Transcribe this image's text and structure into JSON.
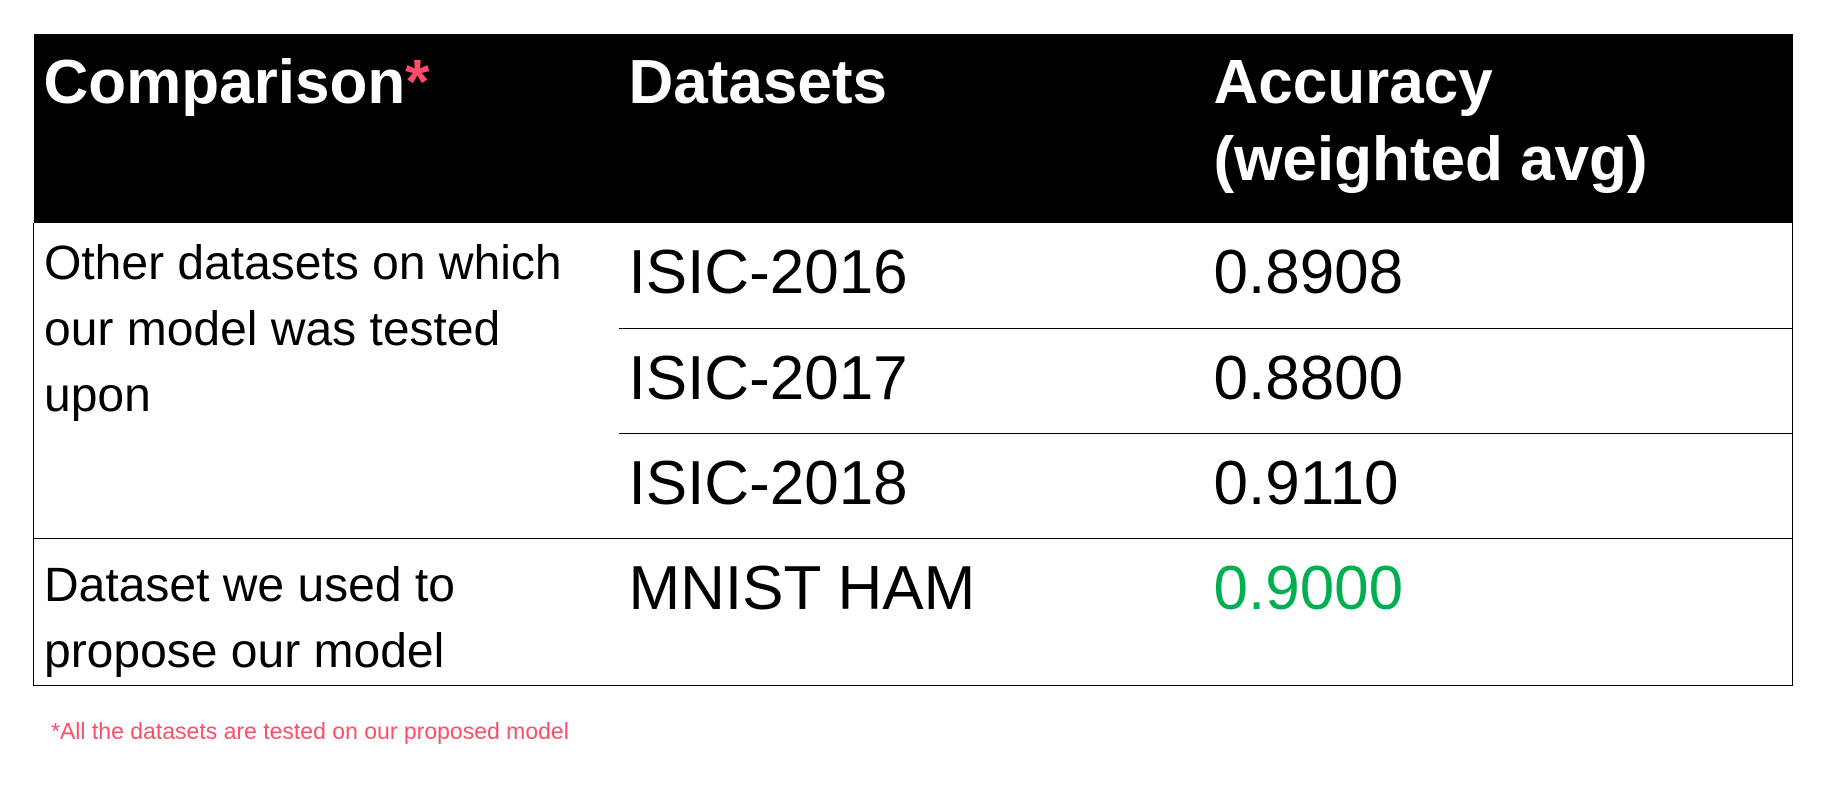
{
  "table": {
    "headers": {
      "comparison": "Comparison",
      "asterisk": "*",
      "datasets": "Datasets",
      "accuracy_line1": "Accuracy",
      "accuracy_line2": "(weighted avg)"
    },
    "group_other": {
      "description": "Other datasets on which our model was tested upon",
      "rows": [
        {
          "dataset": "ISIC-2016",
          "accuracy": "0.8908"
        },
        {
          "dataset": "ISIC-2017",
          "accuracy": "0.8800"
        },
        {
          "dataset": "ISIC-2018",
          "accuracy": "0.9110"
        }
      ]
    },
    "group_proposed": {
      "description": "Dataset we used to propose our model",
      "dataset": "MNIST HAM",
      "accuracy": "0.9000"
    }
  },
  "footnote": "*All the datasets are tested on our proposed model",
  "colors": {
    "header_bg": "#000000",
    "header_text": "#ffffff",
    "asterisk": "#ff4d6a",
    "highlight_accuracy": "#00b050",
    "footnote": "#ff4d6a"
  }
}
